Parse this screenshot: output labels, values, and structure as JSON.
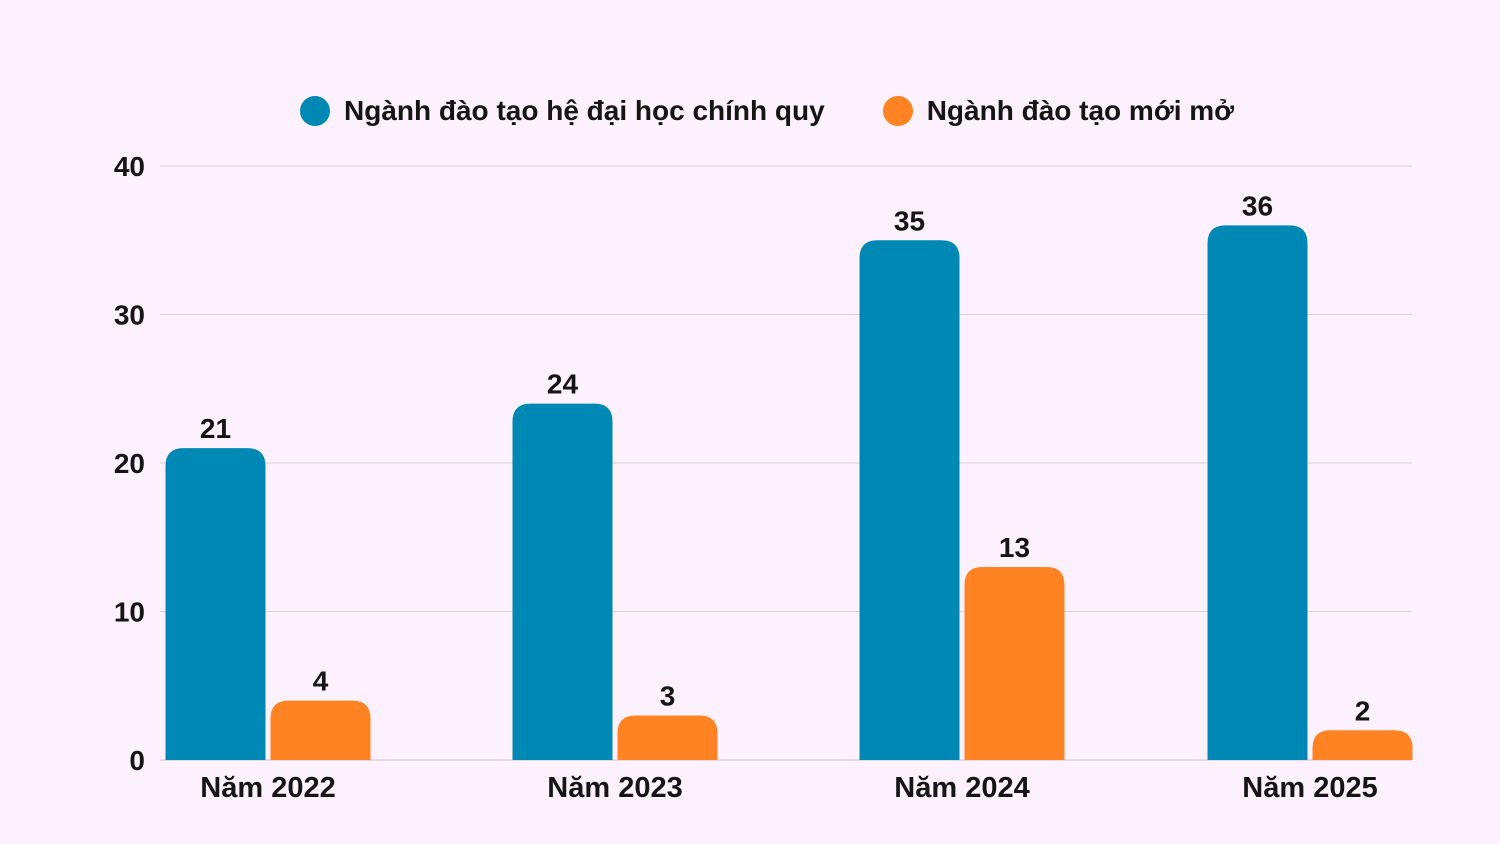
{
  "chart_data": {
    "type": "bar",
    "categories": [
      "Năm 2022",
      "Năm 2023",
      "Năm 2024",
      "Năm 2025"
    ],
    "series": [
      {
        "name": "Ngành đào tạo hệ đại học chính quy",
        "color": "#0088b5",
        "values": [
          21,
          24,
          35,
          36
        ]
      },
      {
        "name": "Ngành đào tạo mới mở",
        "color": "#ff8223",
        "values": [
          4,
          3,
          13,
          2
        ]
      }
    ],
    "y_ticks": [
      0,
      10,
      20,
      30,
      40
    ],
    "ylim": [
      0,
      40
    ],
    "grid": true,
    "legend_position": "top",
    "data_labels": true
  }
}
